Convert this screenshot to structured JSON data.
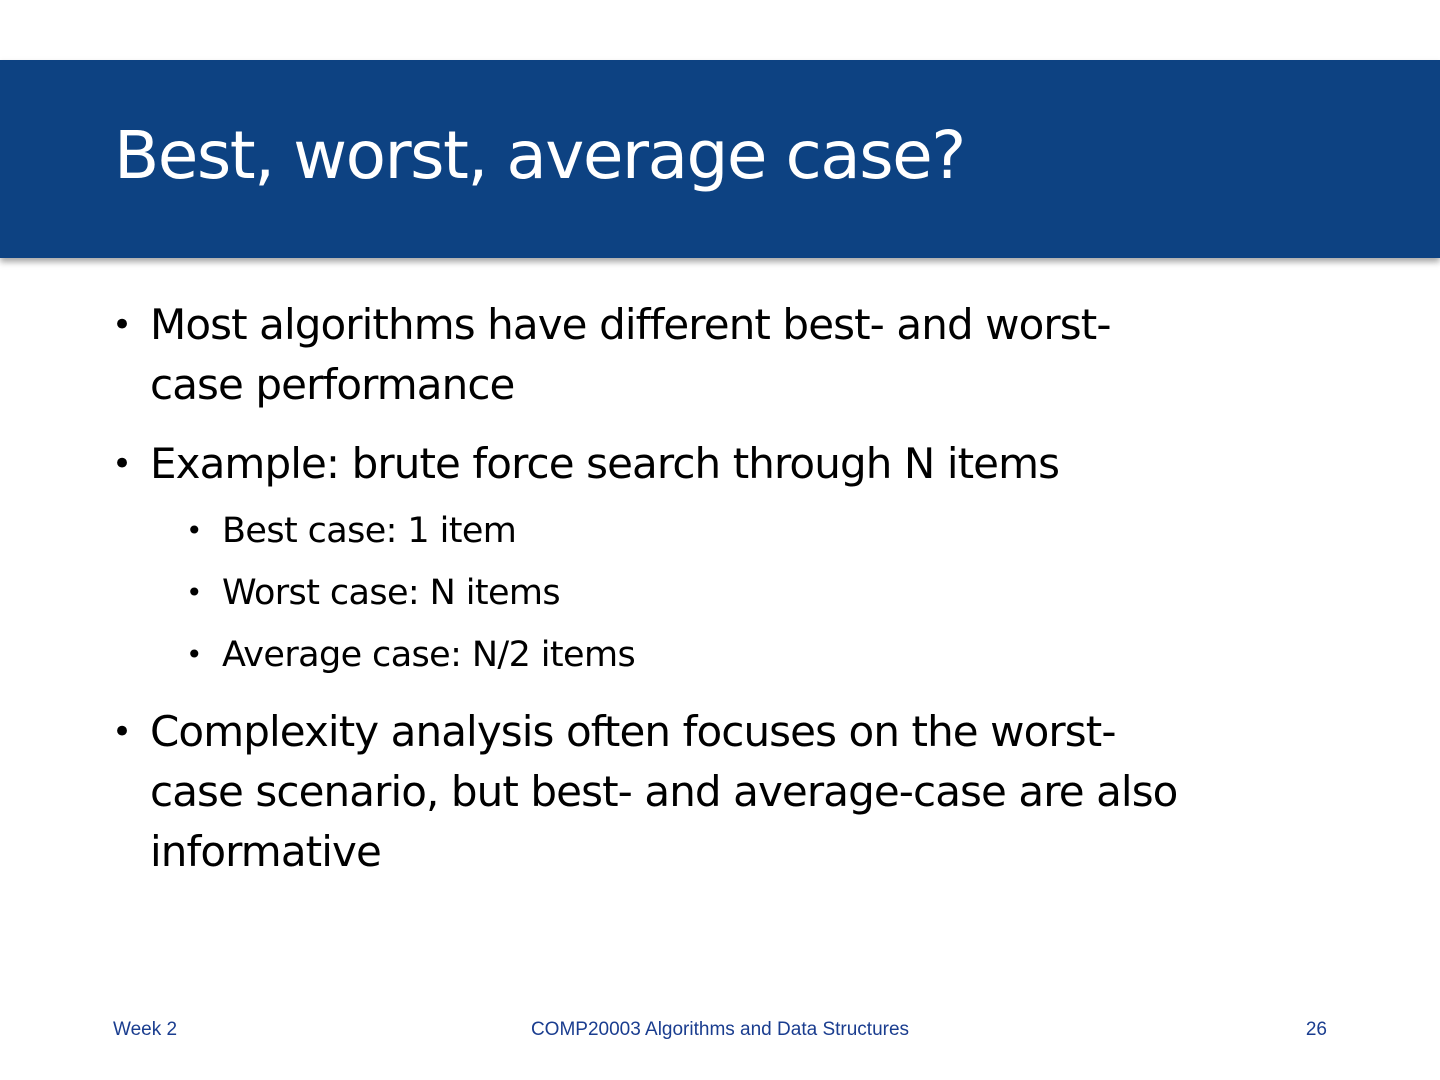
{
  "slide": {
    "title": "Best, worst, average case?",
    "bullets": [
      {
        "text": "Most algorithms have different best- and worst-\ncase performance"
      },
      {
        "text": "Example: brute force search through N items"
      },
      {
        "text": "Complexity analysis often focuses on the worst-\ncase scenario, but best- and average-case are also\ninformative"
      }
    ],
    "sub_bullets": [
      {
        "text": "Best case: 1 item"
      },
      {
        "text": "Worst case: N items"
      },
      {
        "text": "Average case: N/2 items"
      }
    ],
    "bullet_glyph": "•"
  },
  "footer": {
    "left": "Week 2",
    "center": "COMP20003 Algorithms and Data Structures",
    "right": "26"
  },
  "colors": {
    "title_band": "#0d4282",
    "title_text": "#ffffff",
    "footer_text": "#1a3d8f"
  }
}
